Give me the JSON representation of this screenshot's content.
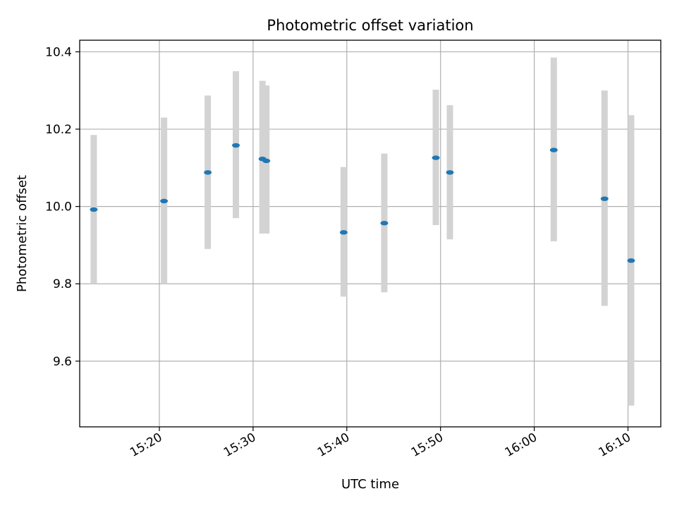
{
  "chart_data": {
    "type": "scatter",
    "title": "Photometric offset variation",
    "xlabel": "UTC time",
    "ylabel": "Photometric offset",
    "x_ticks": [
      "15:20",
      "15:30",
      "15:40",
      "15:50",
      "16:00",
      "16:10"
    ],
    "y_ticks": [
      "9.6",
      "9.8",
      "10.0",
      "10.2",
      "10.4"
    ],
    "xlim": [
      "15:11:30",
      "16:13:30"
    ],
    "ylim": [
      9.43,
      10.43
    ],
    "grid": true,
    "marker_color": "#1f77b4",
    "errorbar_color": "#d3d3d3",
    "points": [
      {
        "time": "15:13:00",
        "y": 9.992,
        "err_low": 9.8,
        "err_high": 10.185
      },
      {
        "time": "15:20:30",
        "y": 10.014,
        "err_low": 9.8,
        "err_high": 10.23
      },
      {
        "time": "15:25:10",
        "y": 10.088,
        "err_low": 9.89,
        "err_high": 10.287
      },
      {
        "time": "15:28:10",
        "y": 10.158,
        "err_low": 9.97,
        "err_high": 10.35
      },
      {
        "time": "15:31:00",
        "y": 10.123,
        "err_low": 9.93,
        "err_high": 10.325
      },
      {
        "time": "15:31:25",
        "y": 10.118,
        "err_low": 9.93,
        "err_high": 10.313
      },
      {
        "time": "15:39:40",
        "y": 9.933,
        "err_low": 9.767,
        "err_high": 10.102
      },
      {
        "time": "15:44:00",
        "y": 9.957,
        "err_low": 9.778,
        "err_high": 10.137
      },
      {
        "time": "15:49:30",
        "y": 10.126,
        "err_low": 9.952,
        "err_high": 10.302
      },
      {
        "time": "15:51:00",
        "y": 10.088,
        "err_low": 9.915,
        "err_high": 10.262
      },
      {
        "time": "16:02:05",
        "y": 10.146,
        "err_low": 9.91,
        "err_high": 10.385
      },
      {
        "time": "16:07:30",
        "y": 10.02,
        "err_low": 9.743,
        "err_high": 10.3
      },
      {
        "time": "16:10:20",
        "y": 9.86,
        "err_low": 9.485,
        "err_high": 10.236
      }
    ]
  }
}
